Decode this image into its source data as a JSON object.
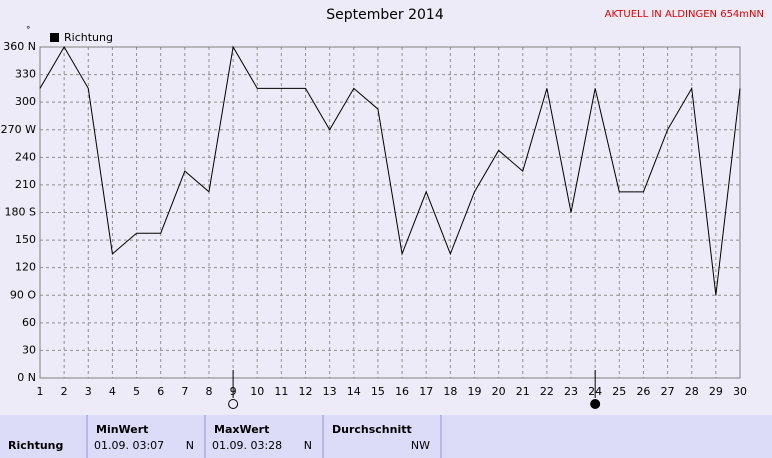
{
  "chart_data": {
    "type": "line",
    "title": "September 2014",
    "station": "AKTUELL IN ALDINGEN 654mNN",
    "unit_mark": "°",
    "x": [
      1,
      2,
      3,
      4,
      5,
      6,
      7,
      8,
      9,
      10,
      11,
      12,
      13,
      14,
      15,
      16,
      17,
      18,
      19,
      20,
      21,
      22,
      23,
      24,
      25,
      26,
      27,
      28,
      29,
      30
    ],
    "series": [
      {
        "name": "Richtung",
        "color": "#000000",
        "values": [
          315,
          360,
          315,
          135,
          157.5,
          157.5,
          225,
          202.5,
          360,
          315,
          315,
          315,
          270,
          315,
          292.5,
          135,
          202.5,
          135,
          202.5,
          247.5,
          225,
          315,
          180,
          315,
          202.5,
          202.5,
          270,
          315,
          90,
          315
        ]
      }
    ],
    "xlim": [
      1,
      30
    ],
    "xticks": [
      1,
      2,
      3,
      4,
      5,
      6,
      7,
      8,
      9,
      10,
      11,
      12,
      13,
      14,
      15,
      16,
      17,
      18,
      19,
      20,
      21,
      22,
      23,
      24,
      25,
      26,
      27,
      28,
      29,
      30
    ],
    "ylim": [
      0,
      360
    ],
    "yticks": [
      {
        "value": 0,
        "label": "0 N"
      },
      30,
      60,
      {
        "value": 90,
        "label": "90 O"
      },
      120,
      150,
      {
        "value": 180,
        "label": "180 S"
      },
      210,
      240,
      {
        "value": 270,
        "label": "270 W"
      },
      300,
      330,
      {
        "value": 360,
        "label": "360 N"
      }
    ],
    "grid": true,
    "markers": [
      {
        "x": 9,
        "style": "open"
      },
      {
        "x": 24,
        "style": "filled"
      }
    ]
  },
  "table": {
    "row_label": "Richtung",
    "columns": [
      {
        "header": "MinWert",
        "date": "01.09.  03:07",
        "value": "N"
      },
      {
        "header": "MaxWert",
        "date": "01.09.  03:28",
        "value": "N"
      },
      {
        "header": "Durchschnitt",
        "date": "",
        "value": "NW"
      }
    ]
  }
}
